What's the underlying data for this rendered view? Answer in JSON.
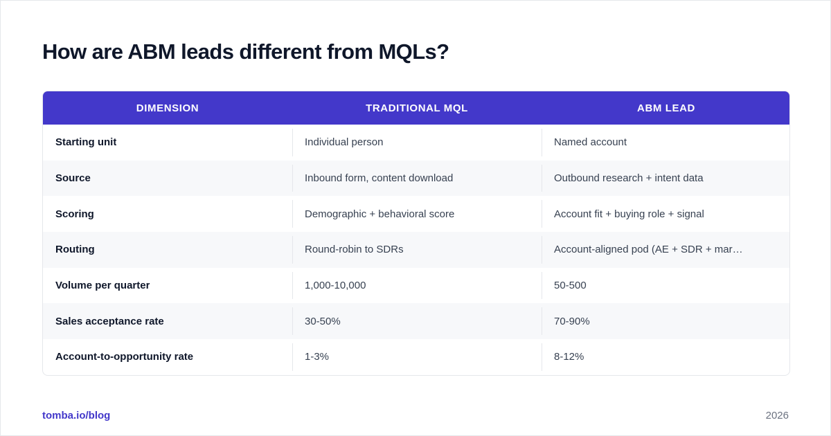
{
  "title": "How are ABM leads different from MQLs?",
  "table": {
    "headers": [
      "DIMENSION",
      "TRADITIONAL MQL",
      "ABM LEAD"
    ],
    "rows": [
      [
        "Starting unit",
        "Individual person",
        "Named account"
      ],
      [
        "Source",
        "Inbound form, content download",
        "Outbound research + intent data"
      ],
      [
        "Scoring",
        "Demographic + behavioral score",
        "Account fit + buying role + signal"
      ],
      [
        "Routing",
        "Round-robin to SDRs",
        "Account-aligned pod (AE + SDR + mar…"
      ],
      [
        "Volume per quarter",
        "1,000-10,000",
        "50-500"
      ],
      [
        "Sales acceptance rate",
        "30-50%",
        "70-90%"
      ],
      [
        "Account-to-opportunity rate",
        "1-3%",
        "8-12%"
      ]
    ]
  },
  "footer": {
    "link": "tomba.io/blog",
    "year": "2026"
  },
  "colors": {
    "header_bg": "#4338ca",
    "accent": "#4338ca",
    "title": "#0f172a",
    "stripe": "#f7f8fa"
  }
}
